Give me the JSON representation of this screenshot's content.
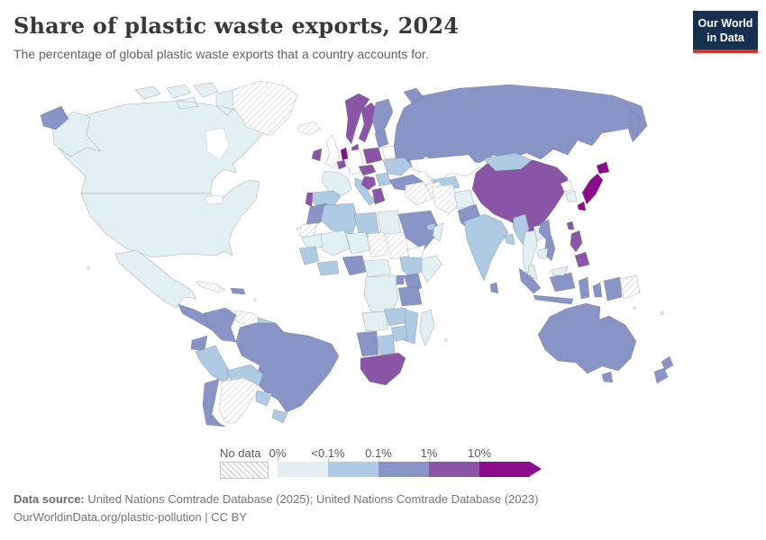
{
  "header": {
    "title": "Share of plastic waste exports, 2024",
    "subtitle": "The percentage of global plastic waste exports that a country accounts for."
  },
  "logo": {
    "line1": "Our World",
    "line2": "in Data",
    "bg_color": "#16304d",
    "accent_color": "#d7352c"
  },
  "legend": {
    "no_data_label": "No data"
  },
  "footer": {
    "source_label": "Data source:",
    "source_text": " United Nations Comtrade Database (2025); United Nations Comtrade Database (2023)",
    "note": "OurWorldinData.org/plastic-pollution | CC BY"
  },
  "chart_data": {
    "type": "choropleth",
    "title": "Share of plastic waste exports, 2024",
    "unit": "share of global plastic waste exports (%)",
    "legend_position": "bottom",
    "zero_color": "#ffffff",
    "ocean_color": "#ffffff",
    "no_data": {
      "label": "No data",
      "pattern": "diagonal-hatch"
    },
    "legend_bins": [
      {
        "id": "b0",
        "label": "0%",
        "color": "#e3f0f3"
      },
      {
        "id": "b1",
        "label": "<0.1%",
        "color": "#aecbe3"
      },
      {
        "id": "b2",
        "label": "0.1%",
        "color": "#8893c6"
      },
      {
        "id": "b3",
        "label": "1%",
        "color": "#8b55a6"
      },
      {
        "id": "b4",
        "label": "10%",
        "color": "#8b0d8c"
      }
    ],
    "values_by_country": {
      "canada": "b0",
      "usa": "b0",
      "greenland": "nd",
      "iceland": "nd",
      "mexico": "b0",
      "central-america": "b2",
      "cuba": "nd",
      "hispaniola": "b2",
      "colombia": "b2",
      "venezuela": "nd",
      "guyana": "b1",
      "ecuador": "b2",
      "peru": "b1",
      "brazil": "b2",
      "bolivia": "b1",
      "paraguay": "b1",
      "uruguay": "b1",
      "chile": "b2",
      "argentina": "nd",
      "united-kingdom": "zero",
      "ireland": "b3",
      "france": "b0",
      "spain": "b1",
      "portugal": "b3",
      "germany": "zero",
      "netherlands": "b4",
      "belgium": "b3",
      "norway": "b3",
      "sweden": "b3",
      "denmark": "b3",
      "finland": "b2",
      "poland": "b3",
      "czechia-austria": "b3",
      "balkans": "b3",
      "greece": "b3",
      "italy": "b1",
      "baltics": "b2",
      "belarus": "zero",
      "ukraine": "b1",
      "romania-bulgaria": "b1",
      "russia": "b2",
      "turkey": "b2",
      "morocco": "b2",
      "western-sahara": "nd",
      "mauritania": "b0",
      "algeria": "b1",
      "libya": "b1",
      "egypt": "b0",
      "mali": "b0",
      "niger": "b0",
      "chad": "nd",
      "sudan": "nd",
      "senegal-guinea": "b1",
      "ivory-coast-ghana": "b1",
      "nigeria": "b2",
      "cameroon-car": "b0",
      "ethiopia": "b1",
      "somalia": "b0",
      "kenya": "b2",
      "uganda": "b2",
      "tanzania": "b2",
      "drc": "b0",
      "angola": "b0",
      "zambia": "b1",
      "zimbabwe": "b1",
      "mozambique": "b1",
      "namibia": "b2",
      "botswana": "b1",
      "south-africa": "b3",
      "madagascar": "b0",
      "syria-iraq": "nd",
      "iran": "nd",
      "saudi-arabia": "b2",
      "yemen": "zero",
      "oman": "b0",
      "uae": "b1",
      "kazakhstan": "zero",
      "turkmenistan": "nd",
      "uzbekistan": "b1",
      "afghanistan": "b0",
      "pakistan": "b2",
      "india": "b1",
      "sri-lanka": "b2",
      "bangladesh": "b1",
      "myanmar": "b1",
      "thailand": "b0",
      "laos": "b0",
      "cambodia": "b0",
      "vietnam": "b2",
      "malaysia": "b0",
      "china": "b3",
      "mongolia": "b1",
      "north-korea": "zero",
      "south-korea": "b0",
      "japan": "b4",
      "taiwan": "b3",
      "philippines": "b3",
      "indonesia": "b2",
      "west-new-guinea": "b2",
      "papua-new-guinea": "nd",
      "australia": "b2",
      "new-zealand": "b2"
    }
  }
}
